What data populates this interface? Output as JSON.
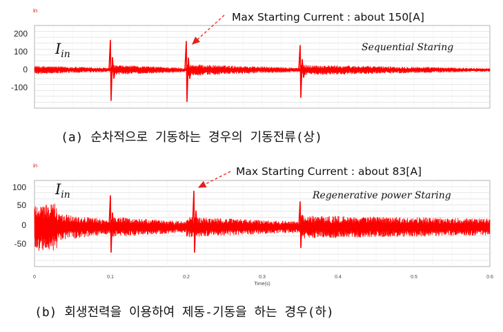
{
  "chart_data": [
    {
      "type": "line",
      "title": "",
      "unit_label": "in",
      "symbol": "I",
      "symbol_sub": "in",
      "inset_label": "Sequential Staring",
      "annotation": "Max Starting Current : about 150[A]",
      "y_ticks": [
        "200",
        "100",
        "0",
        "-100"
      ],
      "ylim": [
        -175,
        225
      ],
      "xlim": [
        0,
        0.6
      ],
      "grid": true,
      "color": "#ff0000",
      "series": [
        {
          "baseline": 10,
          "segments": [
            {
              "x0": 0.0,
              "x1": 0.1,
              "amp_start": 20,
              "amp_end": 10
            },
            {
              "x0": 0.1,
              "x1": 0.2,
              "amp_start": 25,
              "amp_end": 10
            },
            {
              "x0": 0.2,
              "x1": 0.35,
              "amp_start": 28,
              "amp_end": 10
            },
            {
              "x0": 0.35,
              "x1": 0.6,
              "amp_start": 25,
              "amp_end": 8
            }
          ],
          "spikes": [
            {
              "x": 0.1,
              "max": 155,
              "min": -140
            },
            {
              "x": 0.2,
              "max": 150,
              "min": -145
            },
            {
              "x": 0.35,
              "max": 130,
              "min": -125
            }
          ]
        }
      ],
      "caption": "(a) 순차적으로 기동하는 경우의 기동전류(상)"
    },
    {
      "type": "line",
      "title": "",
      "unit_label": "in",
      "symbol": "I",
      "symbol_sub": "in",
      "inset_label": "Regenerative power Staring",
      "annotation": "Max Starting Current : about 83[A]",
      "y_ticks": [
        "100",
        "50",
        "0",
        "-50"
      ],
      "ylim": [
        -75,
        110
      ],
      "xlim": [
        0,
        0.6
      ],
      "grid": true,
      "color": "#ff0000",
      "x_ticks": [
        "0",
        "0.1",
        "0.2",
        "0.3",
        "0.4",
        "0.5",
        "0.6"
      ],
      "xlabel": "Time(s)",
      "series": [
        {
          "baseline": 10,
          "segments": [
            {
              "x0": 0.0,
              "x1": 0.03,
              "amp_start": 52,
              "amp_end": 50
            },
            {
              "x0": 0.03,
              "x1": 0.1,
              "amp_start": 30,
              "amp_end": 15
            },
            {
              "x0": 0.1,
              "x1": 0.2,
              "amp_start": 22,
              "amp_end": 12
            },
            {
              "x0": 0.2,
              "x1": 0.35,
              "amp_start": 22,
              "amp_end": 12
            },
            {
              "x0": 0.35,
              "x1": 0.6,
              "amp_start": 25,
              "amp_end": 18
            }
          ],
          "spikes": [
            {
              "x": 0.1,
              "max": 78,
              "min": -45
            },
            {
              "x": 0.21,
              "max": 88,
              "min": -45
            },
            {
              "x": 0.35,
              "max": 65,
              "min": -35
            }
          ]
        }
      ],
      "caption": "(b) 회생전력을 이용하여 제동-기동을 하는 경우(하)"
    }
  ]
}
